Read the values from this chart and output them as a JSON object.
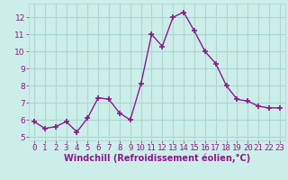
{
  "x": [
    0,
    1,
    2,
    3,
    4,
    5,
    6,
    7,
    8,
    9,
    10,
    11,
    12,
    13,
    14,
    15,
    16,
    17,
    18,
    19,
    20,
    21,
    22,
    23
  ],
  "y": [
    5.9,
    5.5,
    5.6,
    5.9,
    5.3,
    6.1,
    7.3,
    7.2,
    6.4,
    6.0,
    8.1,
    11.0,
    10.3,
    12.0,
    12.3,
    11.2,
    10.0,
    9.3,
    8.0,
    7.2,
    7.1,
    6.8,
    6.7,
    6.7
  ],
  "line_color": "#8b1a8b",
  "marker": "+",
  "marker_size": 4,
  "marker_lw": 1.2,
  "line_width": 1.0,
  "bg_color": "#cceee8",
  "grid_color": "#aad8d4",
  "xlabel": "Windchill (Refroidissement éolien,°C)",
  "xlabel_color": "#8b1a8b",
  "tick_color": "#8b1a8b",
  "xlim": [
    -0.5,
    23.5
  ],
  "ylim": [
    4.8,
    12.8
  ],
  "yticks": [
    5,
    6,
    7,
    8,
    9,
    10,
    11,
    12
  ],
  "xticks": [
    0,
    1,
    2,
    3,
    4,
    5,
    6,
    7,
    8,
    9,
    10,
    11,
    12,
    13,
    14,
    15,
    16,
    17,
    18,
    19,
    20,
    21,
    22,
    23
  ],
  "tick_fontsize": 6.5,
  "xlabel_fontsize": 7.0
}
